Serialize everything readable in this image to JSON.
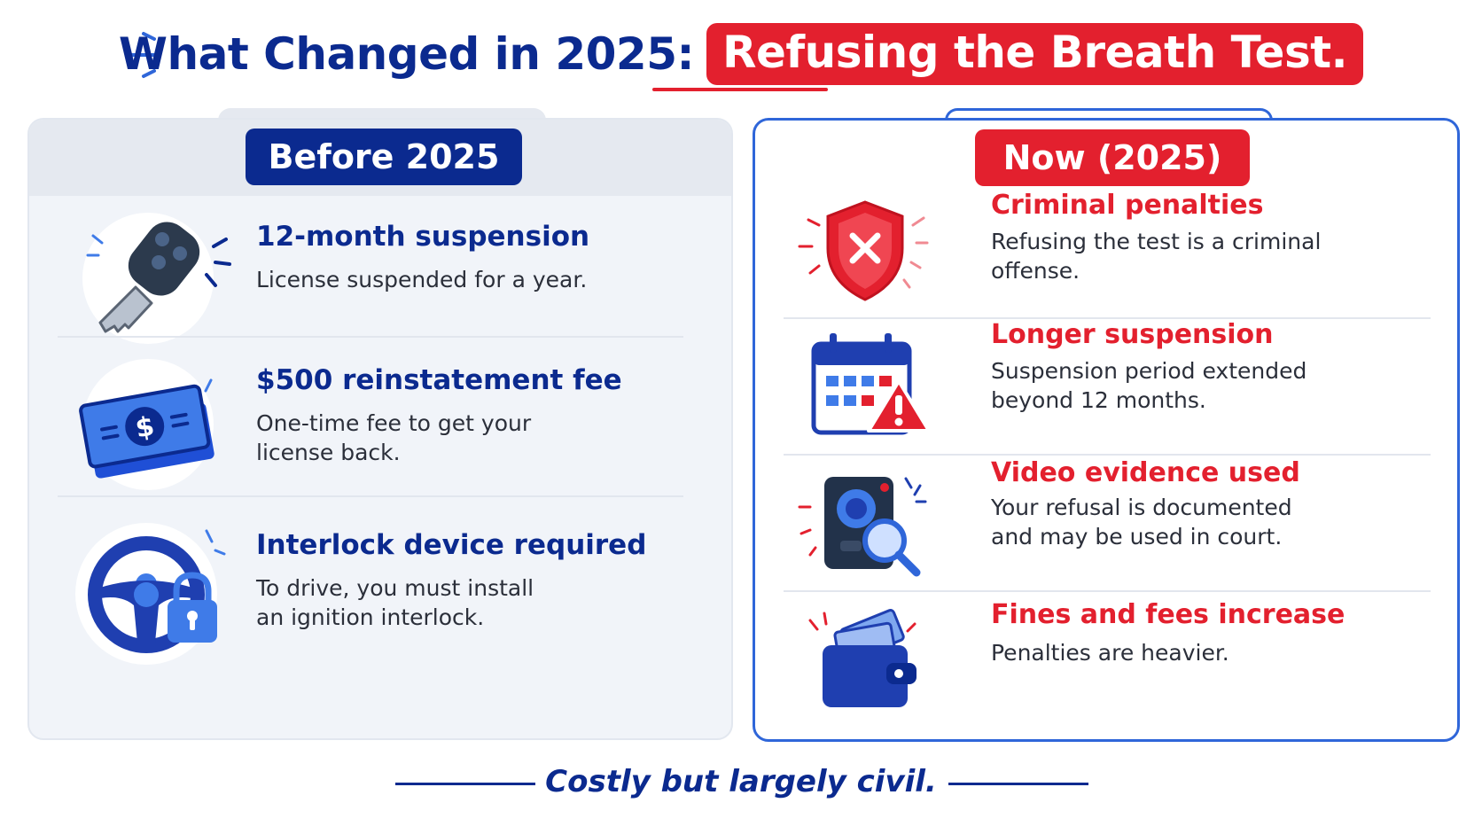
{
  "header": {
    "title_main": "What Changed in 2025:",
    "title_highlight": "Refusing the Breath Test."
  },
  "before": {
    "label": "Before 2025",
    "items": [
      {
        "icon": "car-key-icon",
        "title": "12-month suspension",
        "desc_lines": [
          "License suspended for a year."
        ]
      },
      {
        "icon": "money-bill-icon",
        "title": "$500 reinstatement fee",
        "desc_lines": [
          "One-time fee to get your",
          "license back."
        ]
      },
      {
        "icon": "steering-wheel-lock-icon",
        "title": "Interlock device required",
        "desc_lines": [
          "To drive, you must install",
          "an ignition interlock."
        ]
      }
    ]
  },
  "now": {
    "label": "Now (2025)",
    "items": [
      {
        "icon": "shield-x-icon",
        "title": "Criminal penalties",
        "desc_lines": [
          "Refusing the test is a criminal",
          "offense."
        ]
      },
      {
        "icon": "calendar-warning-icon",
        "title": "Longer suspension",
        "desc_lines": [
          "Suspension period extended",
          "beyond 12 months."
        ]
      },
      {
        "icon": "body-camera-icon",
        "title": "Video evidence used",
        "desc_lines": [
          "Your refusal is documented",
          "and may be used in court."
        ]
      },
      {
        "icon": "wallet-icon",
        "title": "Fines and fees increase",
        "desc_lines": [
          "Penalties are heavier."
        ]
      }
    ]
  },
  "footer": {
    "text": "Costly but largely civil."
  },
  "colors": {
    "navy": "#0b2a8f",
    "red": "#e3202e",
    "blue": "#2f66d9",
    "panel_gray": "#f1f4f9"
  }
}
